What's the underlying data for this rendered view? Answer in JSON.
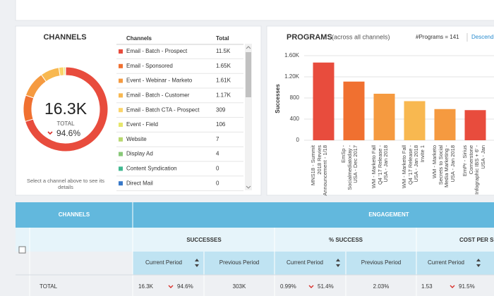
{
  "chart_data": [
    {
      "type": "donut",
      "title": "CHANNELS",
      "categories": [
        "Email - Batch - Prospect",
        "Email - Sponsored",
        "Event - Webinar - Marketo",
        "Email - Batch - Customer",
        "Email - Batch CTA - Prospect",
        "Event - Field",
        "Website",
        "Display Ad",
        "Content Syndication",
        "Direct Mail"
      ],
      "values": [
        11500,
        1650,
        1610,
        1170,
        309,
        106,
        7,
        4,
        0,
        0
      ],
      "value_labels": [
        "11.5K",
        "1.65K",
        "1.61K",
        "1.17K",
        "309",
        "106",
        "7",
        "4",
        "0",
        "0"
      ],
      "colors": [
        "#e84c3d",
        "#f07030",
        "#f59a40",
        "#f8b850",
        "#fbd46a",
        "#e6e66c",
        "#b8d870",
        "#88c878",
        "#40b890",
        "#3878c8"
      ]
    },
    {
      "type": "bar",
      "title": "PROGRAMS",
      "subtitle": "(across all channels)",
      "y_label": "Successes",
      "categories": [
        "MNS18 - Summit 2018 Revies Announcement - 1/18",
        "EmSp - Socialmediatoday - USA - Dec 2017",
        "WM - Marketo Fall Q4 '17 Release - USA - Jan 2018",
        "WM - Marketo Fall Q4 '17 Release - USA - Jan 2018 Invite 1",
        "WM - Marketo Secrets to Social Media Marketing - USA - Jan 2018",
        "EmPr - Sirius Cornerstone Infographic IBS + 6' - USA - Jan"
      ],
      "values": [
        1470,
        1110,
        880,
        740,
        590,
        570
      ],
      "colors": [
        "#e84c3d",
        "#f07030",
        "#f59a40",
        "#f8b850",
        "#f59a40",
        "#e84c3d"
      ],
      "ylim": [
        0,
        1700
      ],
      "yticks": [
        0,
        400,
        800,
        {
          "value": 1200,
          "label": "1.20K"
        },
        {
          "value": 1600,
          "label": "1.60K"
        }
      ],
      "grid": true
    }
  ],
  "channels_panel": {
    "list_headers": [
      "Channels",
      "Total"
    ],
    "center_value": "16.3K",
    "center_caption": "TOTAL",
    "center_change": "94.6%",
    "hint": "Select a channel above to see its details"
  },
  "programs_panel": {
    "count": "#Programs = 141",
    "sort": "Descend"
  },
  "table": {
    "group_headers": [
      "CHANNELS",
      "ENGAGEMENT"
    ],
    "metrics": [
      "SUCCESSES",
      "% SUCCESS",
      "COST PER SUCCESS"
    ],
    "columns": [
      "Current Period",
      "Previous Period",
      "Current Period",
      "Previous Period",
      "Current Period"
    ],
    "total_row": {
      "label": "TOTAL",
      "success_current": "16.3K",
      "success_change": "94.6%",
      "success_previous": "303K",
      "rate_current": "0.99%",
      "rate_change": "51.4%",
      "rate_previous": "2.03%",
      "cost_current": "1.53",
      "cost_change": "91.5%"
    }
  }
}
